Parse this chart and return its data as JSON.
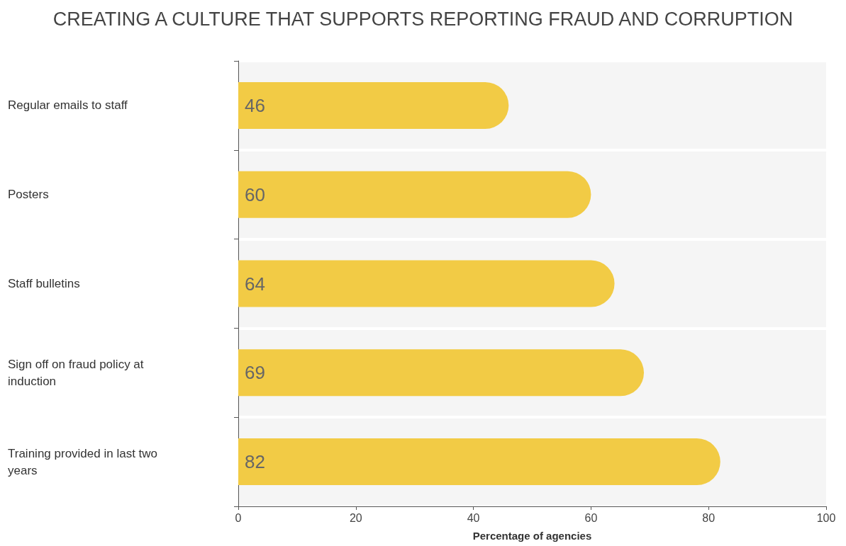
{
  "chart_data": {
    "type": "bar",
    "orientation": "horizontal",
    "title": "CREATING A CULTURE THAT SUPPORTS REPORTING FRAUD AND CORRUPTION",
    "xlabel": "Percentage of agencies",
    "categories": [
      "Regular emails to staff",
      "Posters",
      "Staff bulletins",
      "Sign off on fraud policy at induction",
      "Training provided in last two years"
    ],
    "values": [
      46,
      60,
      64,
      69,
      82
    ],
    "color": "#f2cb45",
    "xlim": [
      0,
      100
    ],
    "xticks": [
      0,
      20,
      40,
      60,
      80,
      100
    ],
    "data_labels": true,
    "grid": false
  }
}
